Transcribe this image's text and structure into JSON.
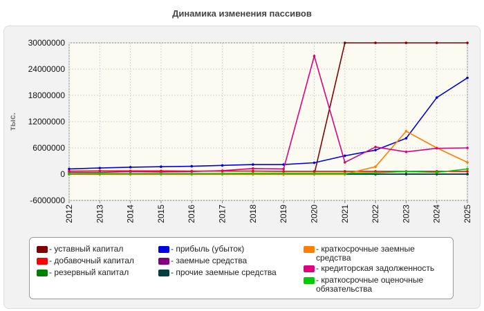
{
  "chart_data": {
    "type": "line",
    "title": "Динамика изменения пассивов",
    "ylabel": "тыс.",
    "xlabel": "",
    "x": [
      "2012",
      "2013",
      "2014",
      "2015",
      "2016",
      "2017",
      "2018",
      "2019",
      "2020",
      "2021",
      "2022",
      "2023",
      "2024",
      "2025"
    ],
    "ylim": [
      -6000000,
      30000000
    ],
    "yticks": [
      "-6000000",
      "0",
      "6000000",
      "12000000",
      "18000000",
      "24000000",
      "30000000"
    ],
    "ytick_values": [
      -6000000,
      0,
      6000000,
      12000000,
      18000000,
      24000000,
      30000000
    ],
    "grid": true,
    "legend_position": "bottom",
    "series": [
      {
        "name": "- уставный капитал",
        "color": "#800000",
        "values": [
          0,
          0,
          0,
          0,
          0,
          0,
          0,
          0,
          0,
          30000000,
          30000000,
          30000000,
          30000000,
          30000000
        ]
      },
      {
        "name": "- добавочный капитал",
        "color": "#ff0000",
        "values": [
          700000,
          750000,
          750000,
          750000,
          700000,
          700000,
          700000,
          650000,
          650000,
          650000,
          650000,
          650000,
          650000,
          650000
        ]
      },
      {
        "name": "- резервный капитал",
        "color": "#008000",
        "values": [
          30000,
          30000,
          30000,
          30000,
          30000,
          30000,
          30000,
          30000,
          30000,
          30000,
          30000,
          30000,
          30000,
          30000
        ]
      },
      {
        "name": "- прибыль (убыток)",
        "color": "#0000e0",
        "values": [
          1200000,
          1400000,
          1600000,
          1700000,
          1800000,
          2000000,
          2200000,
          2200000,
          2600000,
          4200000,
          5500000,
          8200000,
          17500000,
          22000000
        ]
      },
      {
        "name": "- заемные средства",
        "color": "#800080",
        "values": [
          0,
          0,
          0,
          0,
          0,
          0,
          0,
          0,
          0,
          0,
          0,
          0,
          0,
          0
        ]
      },
      {
        "name": "- прочие заемные средства",
        "color": "#004040",
        "values": [
          0,
          0,
          0,
          0,
          0,
          0,
          0,
          0,
          0,
          0,
          0,
          0,
          0,
          0
        ]
      },
      {
        "name": "- краткосрочные заемные средства",
        "color": "#ff8000",
        "values": [
          0,
          0,
          0,
          0,
          0,
          0,
          0,
          0,
          0,
          0,
          1700000,
          9800000,
          6000000,
          2700000
        ]
      },
      {
        "name": "- кредиторская задолженность",
        "color": "#e0007f",
        "values": [
          400000,
          400000,
          600000,
          500000,
          600000,
          800000,
          1300000,
          1200000,
          27000000,
          2700000,
          6200000,
          5100000,
          5900000,
          6000000
        ]
      },
      {
        "name": "- краткосрочные оценочные обязательства",
        "color": "#00cc00",
        "values": [
          100000,
          150000,
          150000,
          150000,
          150000,
          150000,
          200000,
          200000,
          200000,
          200000,
          300000,
          600000,
          400000,
          1200000
        ]
      }
    ]
  },
  "legend_labels": {
    "s0": "- уставный капитал",
    "s1": "- добавочный капитал",
    "s2": "- резервный капитал",
    "s3": "- прибыль (убыток)",
    "s4": "- заемные средства",
    "s5": "- прочие заемные средства",
    "s6": "- краткосрочные заемные средства",
    "s7": "- кредиторская задолженность",
    "s8": "- краткосрочные оценочные обязательства"
  }
}
